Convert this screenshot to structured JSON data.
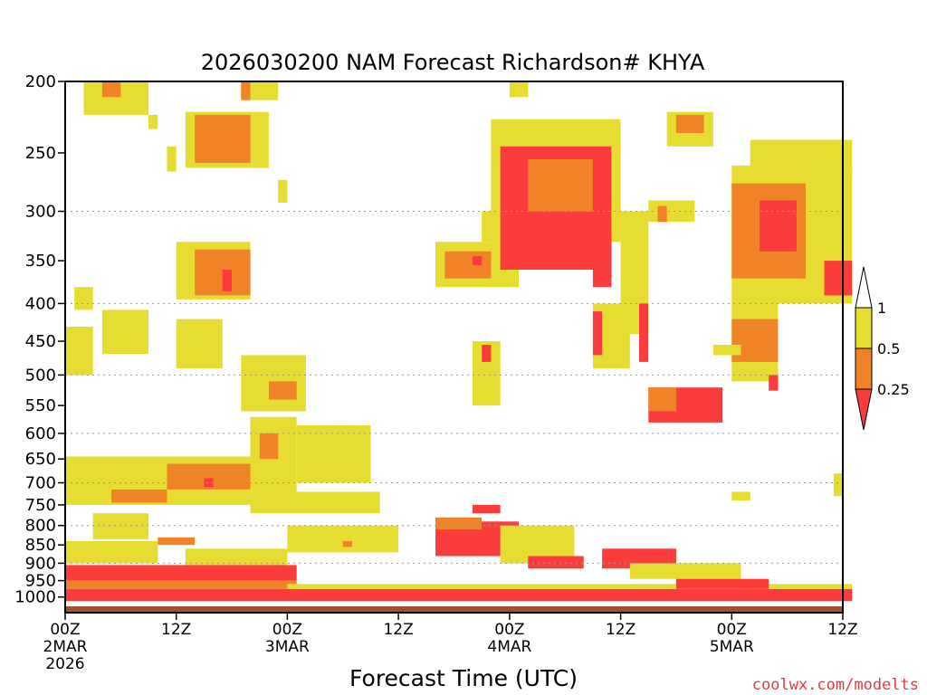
{
  "chart_data": {
    "type": "heatmap",
    "title": "2026030200 NAM Forecast Richardson# KHYA",
    "xlabel": "Forecast Time (UTC)",
    "ylabel": "",
    "credit": "coolwx.com/modelts",
    "y_scale": "log-pressure",
    "ylim": [
      1050,
      200
    ],
    "xlim": [
      0,
      84
    ],
    "y_ticks": [
      200,
      250,
      300,
      350,
      400,
      450,
      500,
      550,
      600,
      650,
      700,
      750,
      800,
      850,
      900,
      950,
      1000
    ],
    "y_gridlines": [
      300,
      400,
      500,
      600,
      700,
      800,
      900
    ],
    "x_ticks": [
      {
        "hour": 0,
        "lines": [
          "00Z",
          "2MAR",
          "2026"
        ]
      },
      {
        "hour": 12,
        "lines": [
          "12Z"
        ]
      },
      {
        "hour": 24,
        "lines": [
          "00Z",
          "3MAR"
        ]
      },
      {
        "hour": 36,
        "lines": [
          "12Z"
        ]
      },
      {
        "hour": 48,
        "lines": [
          "00Z",
          "4MAR"
        ]
      },
      {
        "hour": 60,
        "lines": [
          "12Z"
        ]
      },
      {
        "hour": 72,
        "lines": [
          "00Z",
          "5MAR"
        ]
      },
      {
        "hour": 84,
        "lines": [
          "12Z"
        ]
      }
    ],
    "legend": {
      "placement": "right",
      "levels": [
        "1",
        "0.5",
        "0.25"
      ],
      "bins": [
        {
          "range": "0.5-1",
          "color": "#e6dc32"
        },
        {
          "range": "0.25-0.5",
          "color": "#f08228"
        },
        {
          "range": "<0.25",
          "color": "#fa3c3c"
        }
      ]
    },
    "colors": {
      "yellow": "#e6dc32",
      "orange": "#f08228",
      "red": "#fa3c3c",
      "ground": "#a0522d"
    },
    "surface_pressure": 1013,
    "regions_hours_pressure": [
      {
        "bin": "yellow",
        "h": [
          2,
          9
        ],
        "p": [
          200,
          222
        ]
      },
      {
        "bin": "orange",
        "h": [
          4,
          6
        ],
        "p": [
          200,
          210
        ]
      },
      {
        "bin": "yellow",
        "h": [
          19,
          23
        ],
        "p": [
          200,
          212
        ]
      },
      {
        "bin": "orange",
        "h": [
          19,
          20
        ],
        "p": [
          200,
          212
        ]
      },
      {
        "bin": "yellow",
        "h": [
          13,
          22
        ],
        "p": [
          220,
          262
        ]
      },
      {
        "bin": "orange",
        "h": [
          14,
          20
        ],
        "p": [
          222,
          258
        ]
      },
      {
        "bin": "yellow",
        "h": [
          9,
          10
        ],
        "p": [
          222,
          232
        ]
      },
      {
        "bin": "yellow",
        "h": [
          11,
          12
        ],
        "p": [
          245,
          265
        ]
      },
      {
        "bin": "yellow",
        "h": [
          23,
          24
        ],
        "p": [
          272,
          292
        ]
      },
      {
        "bin": "yellow",
        "h": [
          12,
          20
        ],
        "p": [
          330,
          395
        ]
      },
      {
        "bin": "orange",
        "h": [
          14,
          20
        ],
        "p": [
          338,
          390
        ]
      },
      {
        "bin": "red",
        "h": [
          17,
          18
        ],
        "p": [
          360,
          385
        ]
      },
      {
        "bin": "yellow",
        "h": [
          1,
          3
        ],
        "p": [
          380,
          408
        ]
      },
      {
        "bin": "yellow",
        "h": [
          0,
          3
        ],
        "p": [
          430,
          500
        ]
      },
      {
        "bin": "yellow",
        "h": [
          4,
          9
        ],
        "p": [
          408,
          468
        ]
      },
      {
        "bin": "yellow",
        "h": [
          12,
          17
        ],
        "p": [
          420,
          490
        ]
      },
      {
        "bin": "yellow",
        "h": [
          19,
          26
        ],
        "p": [
          470,
          560
        ]
      },
      {
        "bin": "orange",
        "h": [
          22,
          25
        ],
        "p": [
          510,
          540
        ]
      },
      {
        "bin": "yellow",
        "h": [
          20,
          25
        ],
        "p": [
          570,
          720
        ]
      },
      {
        "bin": "orange",
        "h": [
          21,
          23
        ],
        "p": [
          600,
          650
        ]
      },
      {
        "bin": "yellow",
        "h": [
          25,
          33
        ],
        "p": [
          585,
          700
        ]
      },
      {
        "bin": "yellow",
        "h": [
          0,
          20
        ],
        "p": [
          645,
          750
        ]
      },
      {
        "bin": "orange",
        "h": [
          11,
          20
        ],
        "p": [
          660,
          715
        ]
      },
      {
        "bin": "red",
        "h": [
          15,
          16
        ],
        "p": [
          690,
          710
        ]
      },
      {
        "bin": "orange",
        "h": [
          5,
          11
        ],
        "p": [
          715,
          745
        ]
      },
      {
        "bin": "yellow",
        "h": [
          20,
          34
        ],
        "p": [
          720,
          770
        ]
      },
      {
        "bin": "yellow",
        "h": [
          3,
          9
        ],
        "p": [
          770,
          835
        ]
      },
      {
        "bin": "yellow",
        "h": [
          0,
          10
        ],
        "p": [
          840,
          900
        ]
      },
      {
        "bin": "orange",
        "h": [
          10,
          14
        ],
        "p": [
          830,
          850
        ]
      },
      {
        "bin": "yellow",
        "h": [
          13,
          24
        ],
        "p": [
          860,
          905
        ]
      },
      {
        "bin": "yellow",
        "h": [
          24,
          36
        ],
        "p": [
          800,
          870
        ]
      },
      {
        "bin": "orange",
        "h": [
          30,
          31
        ],
        "p": [
          840,
          855
        ]
      },
      {
        "bin": "red",
        "h": [
          0,
          25
        ],
        "p": [
          905,
          950
        ]
      },
      {
        "bin": "orange",
        "h": [
          0,
          25
        ],
        "p": [
          950,
          975
        ]
      },
      {
        "bin": "red",
        "h": [
          0,
          85
        ],
        "p": [
          975,
          1013
        ]
      },
      {
        "bin": "yellow",
        "h": [
          24,
          85
        ],
        "p": [
          960,
          975
        ]
      },
      {
        "bin": "red",
        "h": [
          40,
          49
        ],
        "p": [
          790,
          880
        ]
      },
      {
        "bin": "orange",
        "h": [
          40,
          45
        ],
        "p": [
          780,
          810
        ]
      },
      {
        "bin": "red",
        "h": [
          44,
          47
        ],
        "p": [
          750,
          770
        ]
      },
      {
        "bin": "yellow",
        "h": [
          47,
          55
        ],
        "p": [
          800,
          900
        ]
      },
      {
        "bin": "red",
        "h": [
          50,
          56
        ],
        "p": [
          880,
          915
        ]
      },
      {
        "bin": "red",
        "h": [
          58,
          66
        ],
        "p": [
          860,
          915
        ]
      },
      {
        "bin": "yellow",
        "h": [
          61,
          73
        ],
        "p": [
          900,
          945
        ]
      },
      {
        "bin": "red",
        "h": [
          66,
          76
        ],
        "p": [
          945,
          975
        ]
      },
      {
        "bin": "yellow",
        "h": [
          40,
          49
        ],
        "p": [
          330,
          380
        ]
      },
      {
        "bin": "orange",
        "h": [
          41,
          46
        ],
        "p": [
          340,
          370
        ]
      },
      {
        "bin": "red",
        "h": [
          44,
          45
        ],
        "p": [
          345,
          355
        ]
      },
      {
        "bin": "yellow",
        "h": [
          45,
          48
        ],
        "p": [
          300,
          330
        ]
      },
      {
        "bin": "yellow",
        "h": [
          46,
          60
        ],
        "p": [
          225,
          330
        ]
      },
      {
        "bin": "red",
        "h": [
          47,
          59
        ],
        "p": [
          245,
          360
        ]
      },
      {
        "bin": "orange",
        "h": [
          50,
          57
        ],
        "p": [
          255,
          300
        ]
      },
      {
        "bin": "yellow",
        "h": [
          48,
          50
        ],
        "p": [
          200,
          210
        ]
      },
      {
        "bin": "red",
        "h": [
          57,
          59
        ],
        "p": [
          320,
          380
        ]
      },
      {
        "bin": "yellow",
        "h": [
          44,
          47
        ],
        "p": [
          450,
          550
        ]
      },
      {
        "bin": "red",
        "h": [
          45,
          46
        ],
        "p": [
          455,
          480
        ]
      },
      {
        "bin": "yellow",
        "h": [
          57,
          61
        ],
        "p": [
          400,
          490
        ]
      },
      {
        "bin": "red",
        "h": [
          57,
          58
        ],
        "p": [
          410,
          470
        ]
      },
      {
        "bin": "yellow",
        "h": [
          60,
          63
        ],
        "p": [
          300,
          440
        ]
      },
      {
        "bin": "red",
        "h": [
          62,
          63
        ],
        "p": [
          400,
          480
        ]
      },
      {
        "bin": "red",
        "h": [
          63,
          71
        ],
        "p": [
          520,
          580
        ]
      },
      {
        "bin": "orange",
        "h": [
          63,
          66
        ],
        "p": [
          520,
          560
        ]
      },
      {
        "bin": "yellow",
        "h": [
          65,
          70
        ],
        "p": [
          220,
          245
        ]
      },
      {
        "bin": "orange",
        "h": [
          66,
          69
        ],
        "p": [
          222,
          235
        ]
      },
      {
        "bin": "yellow",
        "h": [
          63,
          68
        ],
        "p": [
          290,
          310
        ]
      },
      {
        "bin": "orange",
        "h": [
          64,
          65
        ],
        "p": [
          295,
          310
        ]
      },
      {
        "bin": "yellow",
        "h": [
          74,
          77
        ],
        "p": [
          240,
          280
        ]
      },
      {
        "bin": "yellow",
        "h": [
          72,
          85
        ],
        "p": [
          260,
          400
        ]
      },
      {
        "bin": "orange",
        "h": [
          72,
          80
        ],
        "p": [
          275,
          370
        ]
      },
      {
        "bin": "red",
        "h": [
          75,
          79
        ],
        "p": [
          290,
          340
        ]
      },
      {
        "bin": "yellow",
        "h": [
          76,
          85
        ],
        "p": [
          240,
          270
        ]
      },
      {
        "bin": "red",
        "h": [
          82,
          85
        ],
        "p": [
          350,
          390
        ]
      },
      {
        "bin": "yellow",
        "h": [
          72,
          77
        ],
        "p": [
          400,
          510
        ]
      },
      {
        "bin": "orange",
        "h": [
          72,
          77
        ],
        "p": [
          420,
          480
        ]
      },
      {
        "bin": "red",
        "h": [
          76,
          77
        ],
        "p": [
          500,
          525
        ]
      },
      {
        "bin": "yellow",
        "h": [
          70,
          73
        ],
        "p": [
          455,
          470
        ]
      },
      {
        "bin": "yellow",
        "h": [
          83,
          84
        ],
        "p": [
          680,
          730
        ]
      },
      {
        "bin": "yellow",
        "h": [
          72,
          74
        ],
        "p": [
          720,
          740
        ]
      }
    ]
  }
}
